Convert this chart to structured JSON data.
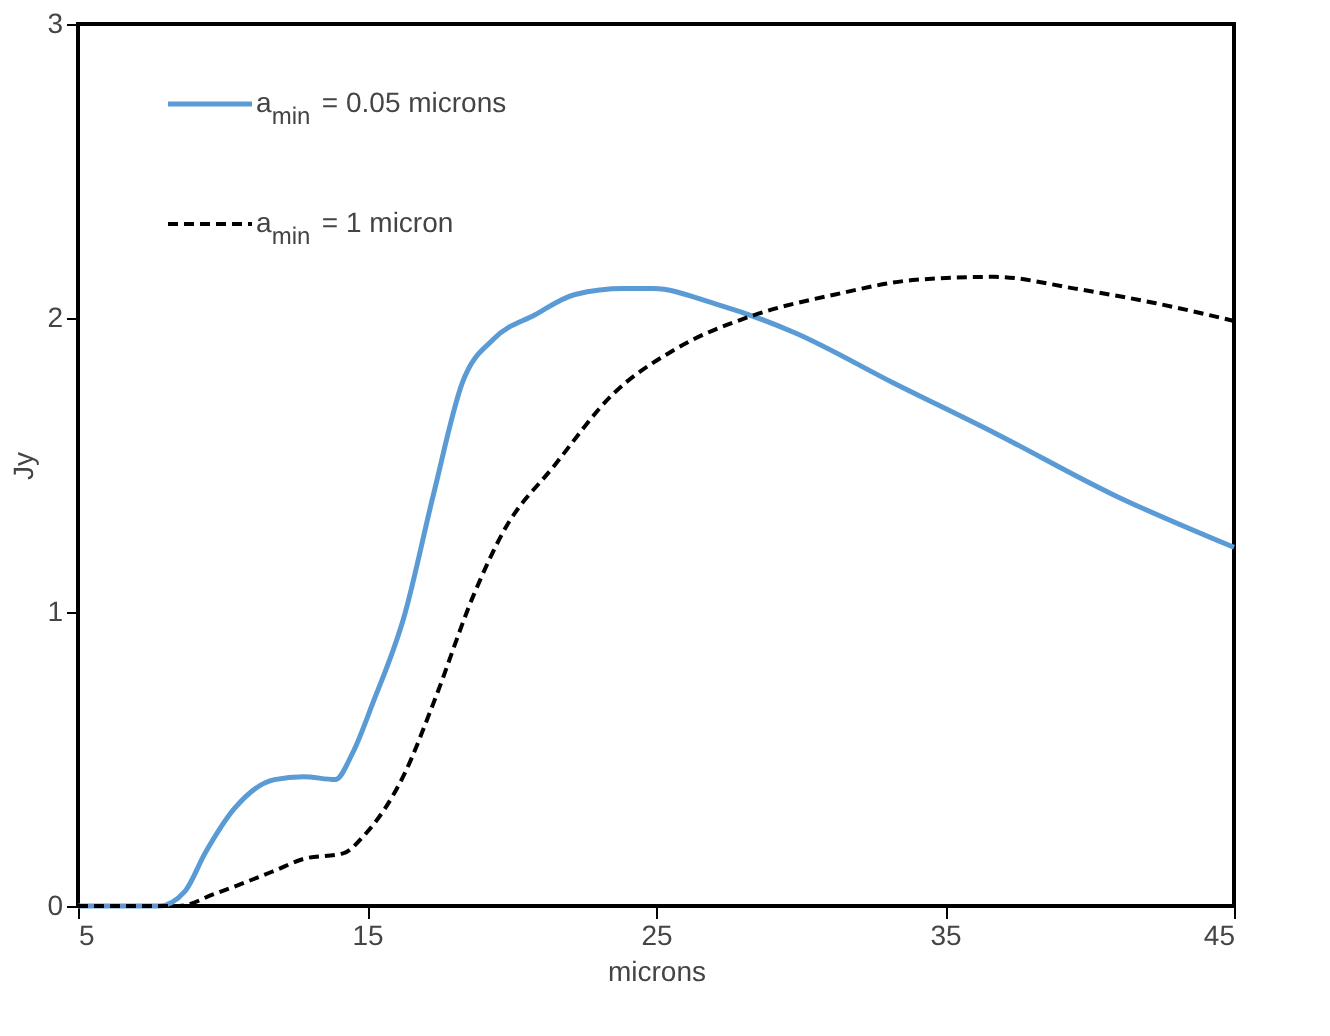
{
  "chart_data": {
    "type": "line",
    "xlabel": "microns",
    "ylabel": "Jy",
    "xlim": [
      5,
      45
    ],
    "xticks": [
      5,
      15,
      25,
      35,
      45
    ],
    "ylim": [
      0,
      3
    ],
    "yticks": [
      0,
      1,
      2,
      3
    ],
    "grid": false,
    "legend": "top left",
    "marker": "none",
    "series": [
      {
        "name": "a$_{min}$ = 0.05 microns",
        "color": "#5b9bd5",
        "line_style": "solid",
        "x": [
          5,
          7.8,
          8.7,
          9.4,
          10.4,
          11.8,
          12.8,
          13.9,
          14.5,
          15.2,
          16.3,
          17.3,
          18.3,
          19.4,
          20.8,
          22.2,
          23.9,
          24.9,
          27.0,
          29.8,
          33.2,
          36.7,
          40.8,
          45
        ],
        "values": [
          0,
          0,
          0.05,
          0.18,
          0.33,
          0.43,
          0.44,
          0.43,
          0.52,
          0.69,
          0.99,
          1.4,
          1.78,
          1.93,
          2.01,
          2.08,
          2.1,
          2.1,
          2.05,
          1.95,
          1.78,
          1.61,
          1.4,
          1.22
        ]
      },
      {
        "name": "a$_{min}$ = 1 micron",
        "color": "#000000",
        "line_style": "dashed",
        "x": [
          5,
          8.5,
          9.7,
          11.8,
          12.8,
          14.2,
          14.9,
          16.3,
          17.3,
          18.7,
          19.7,
          21.5,
          23.5,
          25.6,
          28.4,
          31.2,
          34.0,
          36.7,
          39.5,
          42.3,
          45
        ],
        "values": [
          0,
          0,
          0.04,
          0.12,
          0.16,
          0.18,
          0.24,
          0.45,
          0.69,
          1.06,
          1.27,
          1.5,
          1.74,
          1.89,
          2.01,
          2.08,
          2.13,
          2.14,
          2.1,
          2.05,
          1.99
        ]
      }
    ]
  }
}
